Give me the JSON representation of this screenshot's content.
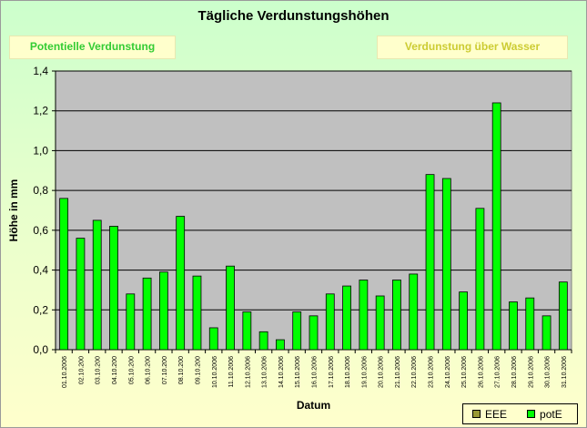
{
  "header": {
    "title": "Tägliche Verdunstungshöhen",
    "left_label": "Potentielle Verdunstung",
    "right_label": "Verdunstung über Wasser"
  },
  "legend": {
    "items": [
      {
        "label": "EEE",
        "color": "#999933"
      },
      {
        "label": "potE",
        "color": "#00ff00"
      }
    ]
  },
  "chart_data": {
    "type": "bar",
    "title": "Tägliche Verdunstungshöhen",
    "xlabel": "Datum",
    "ylabel": "Höhe in mm",
    "ylim": [
      0,
      1.4
    ],
    "yticks": [
      "0,0",
      "0,2",
      "0,4",
      "0,6",
      "0,8",
      "1,0",
      "1,2",
      "1,4"
    ],
    "grid": true,
    "legend_position": "bottom-right",
    "bar_color": "#00ff00",
    "plot_bg": "#c0c0c0",
    "categories": [
      "01.10.2006",
      "02.10.200",
      "03.10.200",
      "04.10.200",
      "05.10.200",
      "06.10.200",
      "07.10.200",
      "08.10.200",
      "09.10.200",
      "10.10.2006",
      "11.10.2006",
      "12.10.2006",
      "13.10.2006",
      "14.10.2006",
      "15.10.2006",
      "16.10.2006",
      "17.10.2006",
      "18.10.2006",
      "19.10.2006",
      "20.10.2006",
      "21.10.2006",
      "22.10.2006",
      "23.10.2006",
      "24.10.2006",
      "25.10.2006",
      "26.10.2006",
      "27.10.2006",
      "28.10.2006",
      "29.10.2006",
      "30.10.2006",
      "31.10.2006"
    ],
    "series": [
      {
        "name": "EEE",
        "values": [
          null,
          null,
          null,
          null,
          null,
          null,
          null,
          null,
          null,
          null,
          null,
          null,
          null,
          null,
          null,
          null,
          null,
          null,
          null,
          null,
          null,
          null,
          null,
          null,
          null,
          null,
          null,
          null,
          null,
          null,
          null
        ]
      },
      {
        "name": "potE",
        "values": [
          0.76,
          0.56,
          0.65,
          0.62,
          0.28,
          0.36,
          0.39,
          0.67,
          0.37,
          0.11,
          0.42,
          0.19,
          0.09,
          0.05,
          0.19,
          0.17,
          0.28,
          0.32,
          0.35,
          0.27,
          0.35,
          0.38,
          0.88,
          0.86,
          0.29,
          0.71,
          1.24,
          0.24,
          0.26,
          0.17,
          0.34
        ]
      }
    ]
  }
}
